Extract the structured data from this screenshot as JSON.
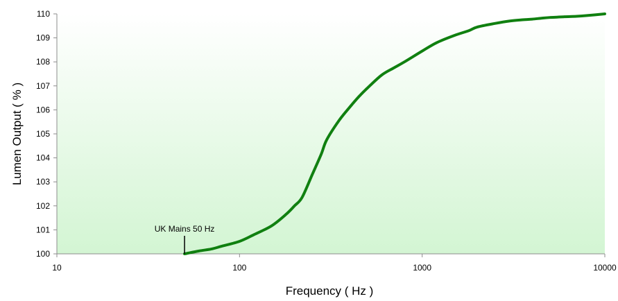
{
  "chart_data": {
    "type": "line",
    "title": "",
    "xlabel": "Frequency ( Hz )",
    "ylabel": "Lumen Output ( % )",
    "x_scale": "log",
    "xlim": [
      10,
      10000
    ],
    "ylim": [
      100,
      110
    ],
    "x_ticks": [
      10,
      100,
      1000,
      10000
    ],
    "x_tick_labels": [
      "10",
      "100",
      "1000",
      "10000"
    ],
    "y_ticks": [
      100,
      101,
      102,
      103,
      104,
      105,
      106,
      107,
      108,
      109,
      110
    ],
    "y_tick_labels": [
      "100",
      "101",
      "102",
      "103",
      "104",
      "105",
      "106",
      "107",
      "108",
      "109",
      "110"
    ],
    "grid": false,
    "legend": "none",
    "series": [
      {
        "color": "#108010",
        "x": [
          50,
          60,
          70,
          80,
          100,
          120,
          150,
          180,
          200,
          220,
          250,
          280,
          300,
          350,
          400,
          450,
          500,
          600,
          700,
          800,
          1000,
          1200,
          1500,
          1800,
          2000,
          2500,
          3000,
          3500,
          4000,
          4500,
          5000,
          6000,
          7000,
          8000,
          10000
        ],
        "y": [
          100.0,
          100.12,
          100.2,
          100.32,
          100.52,
          100.8,
          101.17,
          101.65,
          102.0,
          102.35,
          103.3,
          104.15,
          104.75,
          105.55,
          106.1,
          106.55,
          106.9,
          107.45,
          107.75,
          108.0,
          108.45,
          108.8,
          109.1,
          109.3,
          109.45,
          109.6,
          109.7,
          109.75,
          109.78,
          109.82,
          109.85,
          109.88,
          109.9,
          109.93,
          110.0
        ]
      }
    ],
    "annotations": [
      {
        "text": "UK Mains 50 Hz",
        "x": 50,
        "y": 100
      }
    ],
    "colors": {
      "line": "#108010",
      "plot_fill_top": "#ffffff",
      "plot_fill_bottom": "#d3f5d3",
      "axis": "#8c8c8c"
    }
  }
}
